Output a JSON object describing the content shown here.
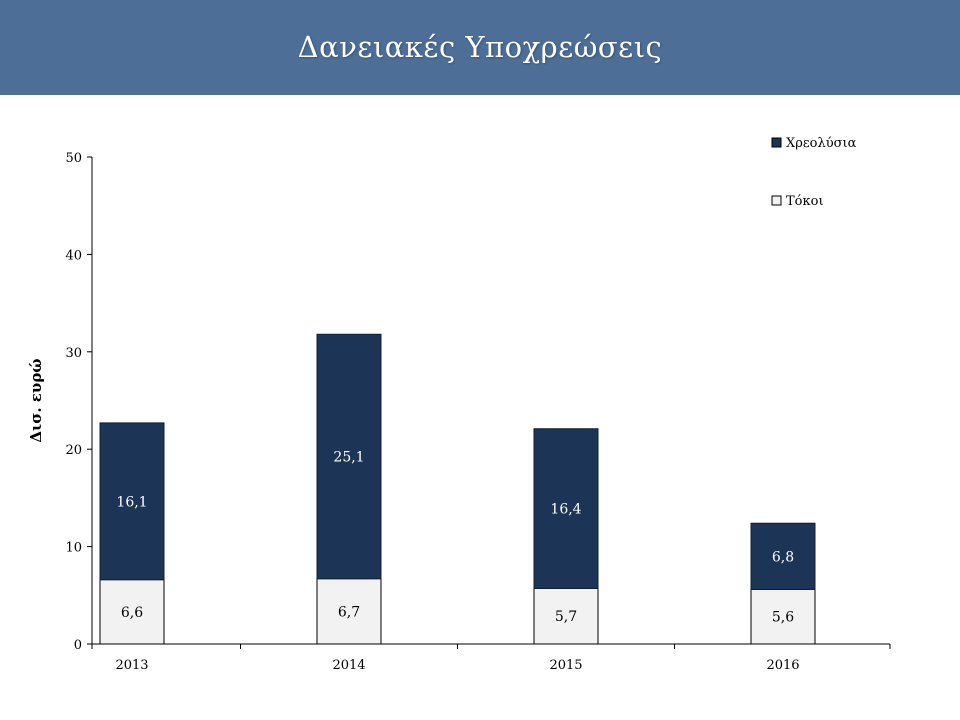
{
  "header": {
    "title": "Δανειακές Υποχρεώσεις"
  },
  "chart_data": {
    "type": "bar",
    "stacked": true,
    "title": "",
    "xlabel": "",
    "ylabel": "Δισ. ευρώ",
    "ylim": [
      0,
      50
    ],
    "yticks": [
      "0",
      "10",
      "20",
      "30",
      "40",
      "50"
    ],
    "categories": [
      "2013",
      "2014",
      "2015",
      "2016"
    ],
    "series": [
      {
        "name": "Τόκοι",
        "values": [
          6.6,
          6.7,
          5.7,
          5.6
        ],
        "labels": [
          "6,6",
          "6,7",
          "5,7",
          "5,6"
        ],
        "color": "#f2f2f2"
      },
      {
        "name": "Χρεολύσια",
        "values": [
          16.1,
          25.1,
          16.4,
          6.8
        ],
        "labels": [
          "16,1",
          "25,1",
          "16,4",
          "6,8"
        ],
        "color": "#1c3557"
      }
    ],
    "legend_order": [
      "Χρεολύσια",
      "Τόκοι"
    ],
    "legend_position": "top-right",
    "grid": false
  }
}
